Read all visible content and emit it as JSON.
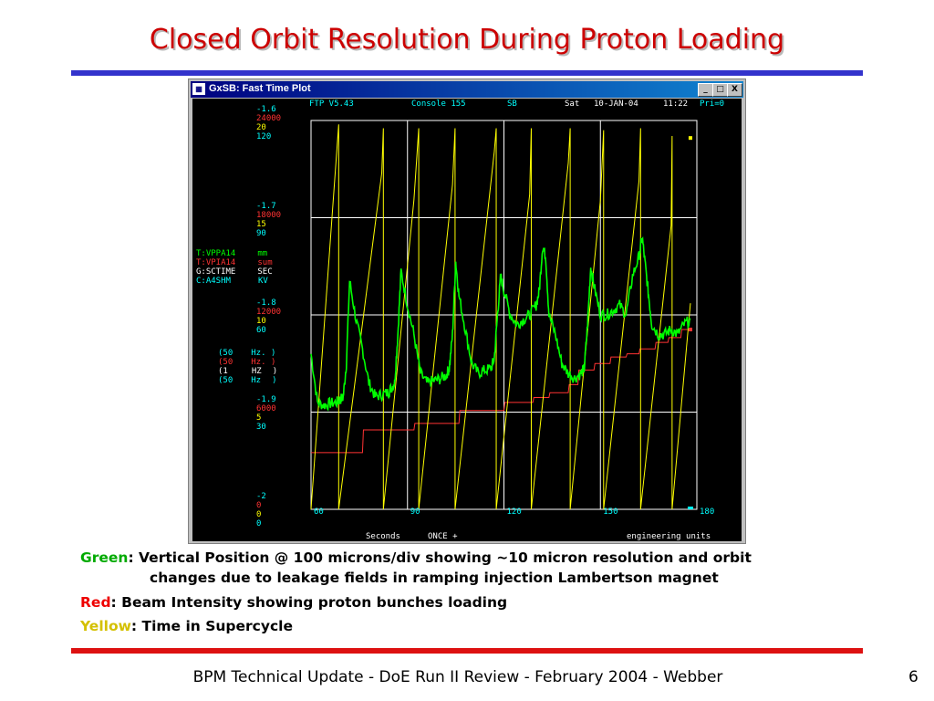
{
  "slide": {
    "title": "Closed Orbit Resolution During Proton Loading",
    "footer": "BPM Technical Update - DoE Run II Review - February 2004 - Webber",
    "page_number": "6"
  },
  "window": {
    "app_icon": "app-icon",
    "title": "GxSB: Fast Time Plot",
    "controls": [
      "_",
      "□",
      "X"
    ]
  },
  "plot": {
    "header": {
      "version": "FTP V5.43",
      "console": "Console 155",
      "sb": "SB",
      "day": "Sat",
      "date": "10-JAN-04",
      "time": "11:22",
      "pri": "Pri=0"
    },
    "scale_groups": [
      {
        "v": [
          "-1.6",
          "24000",
          "20",
          "120"
        ]
      },
      {
        "v": [
          "-1.7",
          "18000",
          "15",
          "90"
        ]
      },
      {
        "v": [
          "-1.8",
          "12000",
          "10",
          "60"
        ]
      },
      {
        "v": [
          "-1.9",
          "6000",
          "5",
          "30"
        ]
      },
      {
        "v": [
          "-2",
          "0",
          "0",
          "0"
        ]
      }
    ],
    "devices": [
      {
        "name": "T:VPPA14",
        "unit": "mm",
        "color": "#00ff00"
      },
      {
        "name": "T:VPIA14",
        "unit": "sum",
        "color": "#ff3333"
      },
      {
        "name": "G:SCTIME",
        "unit": "SEC",
        "color": "#ffff00"
      },
      {
        "name": "C:A4SHM",
        "unit": "KV",
        "color": "#00ffff"
      }
    ],
    "rates": [
      {
        "open": "(50",
        "unit": "Hz.",
        "close": ")",
        "color": "#00ff00"
      },
      {
        "open": "(50",
        "unit": "Hz.",
        "close": ")",
        "color": "#ff3333"
      },
      {
        "open": "(1",
        "unit": "HZ",
        "close": ")",
        "color": "#ffff00"
      },
      {
        "open": "(50",
        "unit": "Hz",
        "close": ")",
        "color": "#00ffff"
      }
    ],
    "x_ticks": [
      "60",
      "90",
      "120",
      "150",
      "180"
    ],
    "bottom_left": "Seconds",
    "bottom_mid": "ONCE +",
    "bottom_right": "engineering units",
    "colors": {
      "green": "#00ff00",
      "red": "#ff3333",
      "yellow": "#ffff00",
      "cyan": "#00ffff",
      "grid": "#ffffff"
    }
  },
  "chart_data": {
    "type": "line",
    "x_unit": "Seconds",
    "xlim": [
      60,
      180
    ],
    "ylim_green_mm": [
      -2,
      -1.6
    ],
    "ylim_red_sum": [
      0,
      24000
    ],
    "ylim_yellow_sec": [
      0,
      20
    ],
    "series": [
      {
        "name": "T:VPPA14",
        "unit": "mm",
        "color": "#00ff00",
        "x": [
          60,
          62,
          64,
          66,
          68,
          69,
          70,
          71,
          72,
          74,
          76,
          78,
          80,
          82,
          84,
          85,
          86,
          87,
          88,
          90,
          92,
          94,
          96,
          98,
          100,
          102,
          103,
          104,
          105,
          106,
          108,
          110,
          112,
          114,
          116,
          117,
          118,
          119,
          120,
          122,
          124,
          126,
          128,
          130,
          131,
          132,
          133,
          134,
          136,
          138,
          140,
          142,
          144,
          145,
          146,
          147,
          148,
          150,
          152,
          154,
          156,
          158,
          160,
          162,
          163,
          164,
          165,
          166,
          168,
          170,
          172,
          174,
          176,
          178
        ],
        "values": [
          -1.84,
          -1.89,
          -1.893,
          -1.891,
          -1.89,
          -1.887,
          -1.885,
          -1.85,
          -1.765,
          -1.805,
          -1.835,
          -1.87,
          -1.884,
          -1.882,
          -1.88,
          -1.875,
          -1.87,
          -1.82,
          -1.755,
          -1.79,
          -1.82,
          -1.86,
          -1.87,
          -1.868,
          -1.866,
          -1.862,
          -1.855,
          -1.82,
          -1.745,
          -1.78,
          -1.815,
          -1.85,
          -1.86,
          -1.857,
          -1.855,
          -1.845,
          -1.8,
          -1.76,
          -1.775,
          -1.8,
          -1.81,
          -1.805,
          -1.8,
          -1.79,
          -1.775,
          -1.73,
          -1.74,
          -1.8,
          -1.82,
          -1.85,
          -1.86,
          -1.865,
          -1.86,
          -1.855,
          -1.81,
          -1.75,
          -1.77,
          -1.8,
          -1.8,
          -1.795,
          -1.79,
          -1.8,
          -1.76,
          -1.74,
          -1.72,
          -1.75,
          -1.78,
          -1.81,
          -1.82,
          -1.82,
          -1.815,
          -1.82,
          -1.81,
          -1.805
        ]
      },
      {
        "name": "T:VPIA14",
        "unit": "sum",
        "color": "#ff3333",
        "x": [
          60,
          76,
          76.3,
          92,
          92.3,
          106,
          106.3,
          120,
          120.3,
          129,
          129.3,
          134,
          134.3,
          140,
          140.3,
          143,
          143.3,
          148,
          148.3,
          153,
          153.3,
          158,
          158.3,
          162,
          162.3,
          167,
          167.3,
          171,
          171.3,
          175,
          175.3,
          178
        ],
        "values": [
          3500,
          3500,
          4900,
          4900,
          5300,
          5300,
          6100,
          6100,
          6600,
          6600,
          6900,
          6900,
          7200,
          7200,
          7700,
          7700,
          8600,
          8600,
          9000,
          9000,
          9400,
          9400,
          9600,
          9600,
          9900,
          9900,
          10300,
          10300,
          10600,
          10600,
          11100,
          11100
        ]
      },
      {
        "name": "G:SCTIME",
        "unit": "SEC",
        "color": "#ffff00",
        "x": [
          60,
          68.6,
          68.6,
          82,
          82.5,
          82.5,
          92,
          93.5,
          93.5,
          104,
          104.8,
          104.8,
          117,
          117.6,
          117.6,
          128,
          128.5,
          128.5,
          140,
          140.6,
          140.6,
          150,
          151,
          151,
          162,
          162.5,
          162.5,
          172,
          172.3,
          172.3,
          178
        ],
        "values": [
          0,
          19.8,
          0,
          17.3,
          19.6,
          0,
          15.9,
          19.6,
          0,
          16.7,
          19.6,
          0,
          18.4,
          19.6,
          0,
          16.2,
          19.6,
          0,
          17.8,
          19.6,
          0,
          15.9,
          19.5,
          0,
          16.9,
          19.6,
          0,
          14.6,
          19.2,
          0,
          10.6
        ]
      }
    ]
  },
  "caption": {
    "green": {
      "label": "Green",
      "sep": ":",
      "text": " Vertical Position @ 100 microns/div showing ~10 micron resolution and orbit",
      "cont": "changes due to leakage fields in ramping injection Lambertson magnet"
    },
    "red": {
      "label": "Red",
      "sep": ":",
      "text": " Beam Intensity showing proton bunches loading"
    },
    "yellow": {
      "label": "Yellow",
      "sep": ":",
      "text": " Time in Supercycle"
    }
  }
}
